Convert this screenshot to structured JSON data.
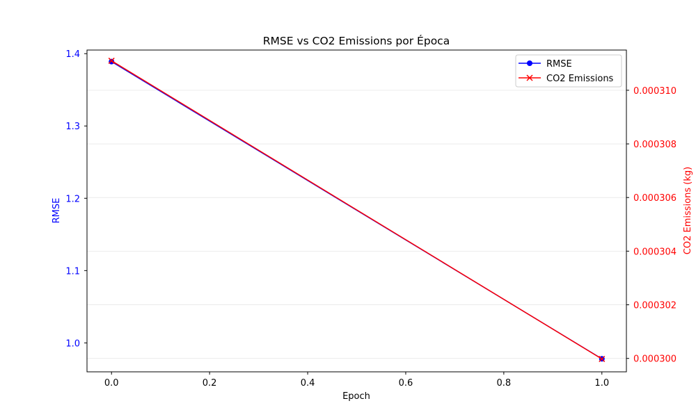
{
  "chart_data": {
    "type": "line",
    "title": "RMSE vs CO2 Emissions por Época",
    "xlabel": "Epoch",
    "ylabel_left": "RMSE",
    "ylabel_right": "CO2 Emissions (kg)",
    "x": [
      0.0,
      1.0
    ],
    "xlim": [
      -0.05,
      1.05
    ],
    "x_ticks": [
      "0.0",
      "0.2",
      "0.4",
      "0.6",
      "0.8",
      "1.0"
    ],
    "ylim_left": [
      0.96,
      1.405
    ],
    "y_ticks_left": [
      "1.0",
      "1.1",
      "1.2",
      "1.3",
      "1.4"
    ],
    "ylim_right": [
      0.0002995,
      0.0003115
    ],
    "y_ticks_right": [
      "0.000300",
      "0.000302",
      "0.000304",
      "0.000306",
      "0.000308",
      "0.000310"
    ],
    "grid": "horizontal, right axis",
    "legend_position": "top-right",
    "series": [
      {
        "name": "RMSE",
        "axis": "left",
        "marker": "circle",
        "color": "#0000ff",
        "values": [
          1.389,
          0.978
        ]
      },
      {
        "name": "CO2 Emissions",
        "axis": "right",
        "marker": "x",
        "color": "#ff0000",
        "values": [
          0.0003111,
          0.00029998
        ]
      }
    ],
    "left_axis_color": "#0000ff",
    "right_axis_color": "#ff0000"
  }
}
